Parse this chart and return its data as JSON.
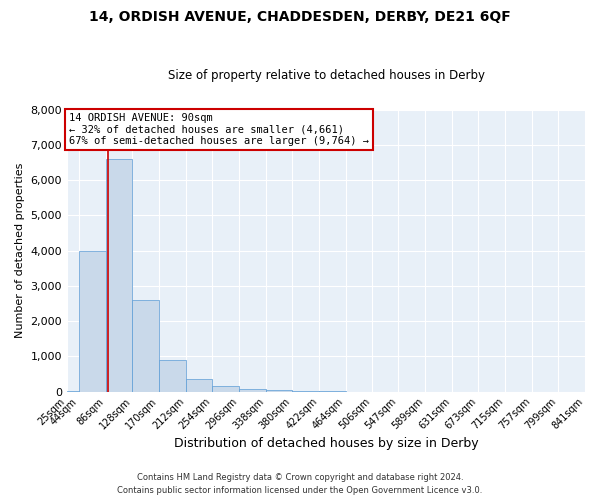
{
  "title_line1": "14, ORDISH AVENUE, CHADDESDEN, DERBY, DE21 6QF",
  "title_line2": "Size of property relative to detached houses in Derby",
  "xlabel": "Distribution of detached houses by size in Derby",
  "ylabel": "Number of detached properties",
  "bin_edges": [
    25,
    44,
    86,
    128,
    170,
    212,
    254,
    296,
    338,
    380,
    422,
    464,
    506,
    547,
    589,
    631,
    673,
    715,
    757,
    799,
    841
  ],
  "bar_heights": [
    25,
    4000,
    6600,
    2600,
    900,
    350,
    150,
    70,
    35,
    15,
    5,
    2,
    1,
    0,
    0,
    0,
    0,
    0,
    0,
    0
  ],
  "bar_color": "#c9d9ea",
  "bar_edge_color": "#5b9bd5",
  "property_size": 90,
  "red_line_color": "#cc0000",
  "annotation_line1": "14 ORDISH AVENUE: 90sqm",
  "annotation_line2": "← 32% of detached houses are smaller (4,661)",
  "annotation_line3": "67% of semi-detached houses are larger (9,764) →",
  "annotation_box_color": "#ffffff",
  "annotation_border_color": "#cc0000",
  "ylim": [
    0,
    8000
  ],
  "yticks": [
    0,
    1000,
    2000,
    3000,
    4000,
    5000,
    6000,
    7000,
    8000
  ],
  "background_color": "#ffffff",
  "plot_bg_color": "#e8f0f8",
  "grid_color": "#ffffff",
  "footer_line1": "Contains HM Land Registry data © Crown copyright and database right 2024.",
  "footer_line2": "Contains public sector information licensed under the Open Government Licence v3.0."
}
